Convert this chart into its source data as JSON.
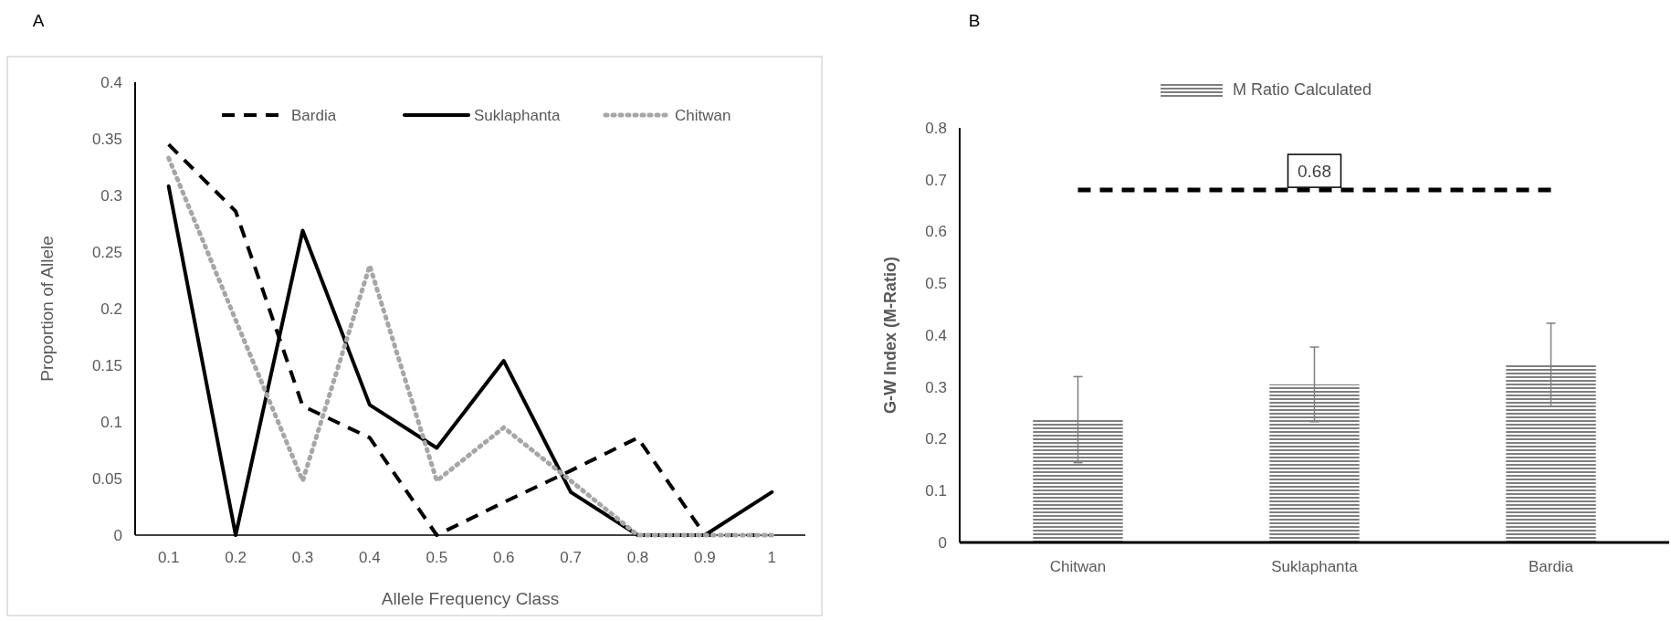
{
  "chart_data": [
    {
      "type": "line",
      "title": "A",
      "xlabel": "Allele Frequency Class",
      "ylabel": "Proportion of Allele",
      "categories": [
        "0.1",
        "0.2",
        "0.3",
        "0.4",
        "0.5",
        "0.6",
        "0.7",
        "0.8",
        "0.9",
        "1"
      ],
      "ylim": [
        0,
        0.4
      ],
      "yticks": [
        0,
        0.05,
        0.1,
        0.15,
        0.2,
        0.25,
        0.3,
        0.35,
        0.4
      ],
      "legend": "top right",
      "series": [
        {
          "name": "Bardia",
          "color": "#000000",
          "line_style": "dashed",
          "values": [
            0.345,
            0.286,
            0.114,
            0.086,
            0.0,
            0.029,
            0.057,
            0.086,
            0,
            0
          ]
        },
        {
          "name": "Suklaphanta",
          "color": "#000000",
          "line_style": "solid",
          "values": [
            0.308,
            0,
            0.269,
            0.115,
            0.077,
            0.154,
            0.038,
            0,
            0,
            0.038
          ]
        },
        {
          "name": "Chitwan",
          "color": "#a6a6a6",
          "line_style": "dotted",
          "values": [
            0.333,
            0.19,
            0.048,
            0.238,
            0.048,
            0.095,
            0.048,
            0,
            0,
            0
          ]
        }
      ]
    },
    {
      "type": "bar",
      "title": "B",
      "ylabel": "G-W Index (M-Ratio)",
      "categories": [
        "Chitwan",
        "Suklaphanta",
        "Bardia"
      ],
      "ylim": [
        0,
        0.8
      ],
      "yticks": [
        0,
        0.1,
        0.2,
        0.3,
        0.4,
        0.5,
        0.6,
        0.7,
        0.8
      ],
      "legend": "top",
      "series": [
        {
          "name": "M Ratio Calculated",
          "color": "#7f7f7f",
          "values": [
            0.237,
            0.305,
            0.343
          ],
          "errors": [
            0.083,
            0.072,
            0.08
          ]
        }
      ],
      "ref_lines": [
        {
          "axis": "y",
          "value": 0.68,
          "label": "0.68",
          "color": "#000000",
          "line_style": "dashed"
        }
      ]
    }
  ]
}
